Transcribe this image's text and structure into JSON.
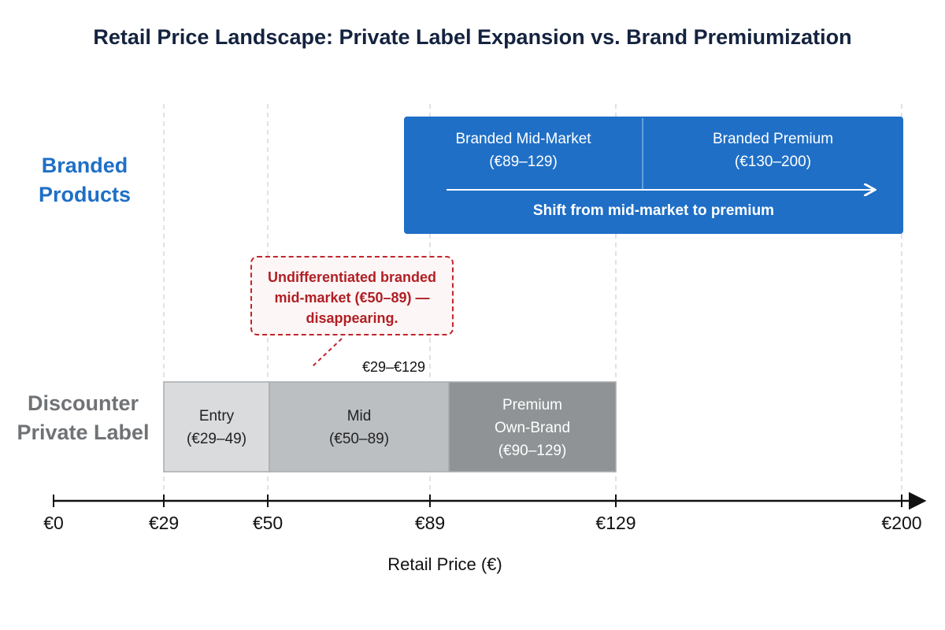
{
  "title": "Retail Price Landscape: Private Label Expansion vs. Brand Premiumization",
  "axis": {
    "title": "Retail Price (€)",
    "min": 0,
    "max": 200,
    "ticks": [
      {
        "value": 0,
        "label": "€0"
      },
      {
        "value": 29,
        "label": "€29"
      },
      {
        "value": 50,
        "label": "€50"
      },
      {
        "value": 89,
        "label": "€89"
      },
      {
        "value": 129,
        "label": "€129"
      },
      {
        "value": 200,
        "label": "€200"
      }
    ]
  },
  "rows": {
    "branded": {
      "label_line1": "Branded",
      "label_line2": "Products",
      "color": "#1f6fc7"
    },
    "private_label": {
      "label_line1": "Discounter",
      "label_line2": "Private Label",
      "color": "#707376"
    }
  },
  "branded_segments": [
    {
      "name": "Branded Mid-Market",
      "range": "(€89–129)",
      "start": 89,
      "end": 129
    },
    {
      "name": "Branded Premium",
      "range": "(€130–200)",
      "start": 130,
      "end": 200
    }
  ],
  "branded_shift": {
    "label": "Shift from mid-market to premium"
  },
  "private_label_segments": [
    {
      "line1": "Entry",
      "line2": "",
      "range": "(€29–49)",
      "start": 29,
      "end": 49,
      "color": "#d9dbdc",
      "text_color": "#222222"
    },
    {
      "line1": "Mid",
      "line2": "",
      "range": "(€50–89)",
      "start": 50,
      "end": 89,
      "color": "#bcbfc1",
      "text_color": "#222222"
    },
    {
      "line1": "Premium",
      "line2": "Own-Brand",
      "range": "(€90–129)",
      "start": 90,
      "end": 129,
      "color": "#8f9395",
      "text_color": "#ffffff"
    }
  ],
  "private_label_range": "€29–€129",
  "callout": {
    "line1": "Undifferentiated branded",
    "line2": "mid-market (€50–89) —",
    "line3": "disappearing."
  },
  "colors": {
    "branded_band": "#1f6fc7",
    "callout": "#c0262c",
    "title": "#14233f"
  }
}
